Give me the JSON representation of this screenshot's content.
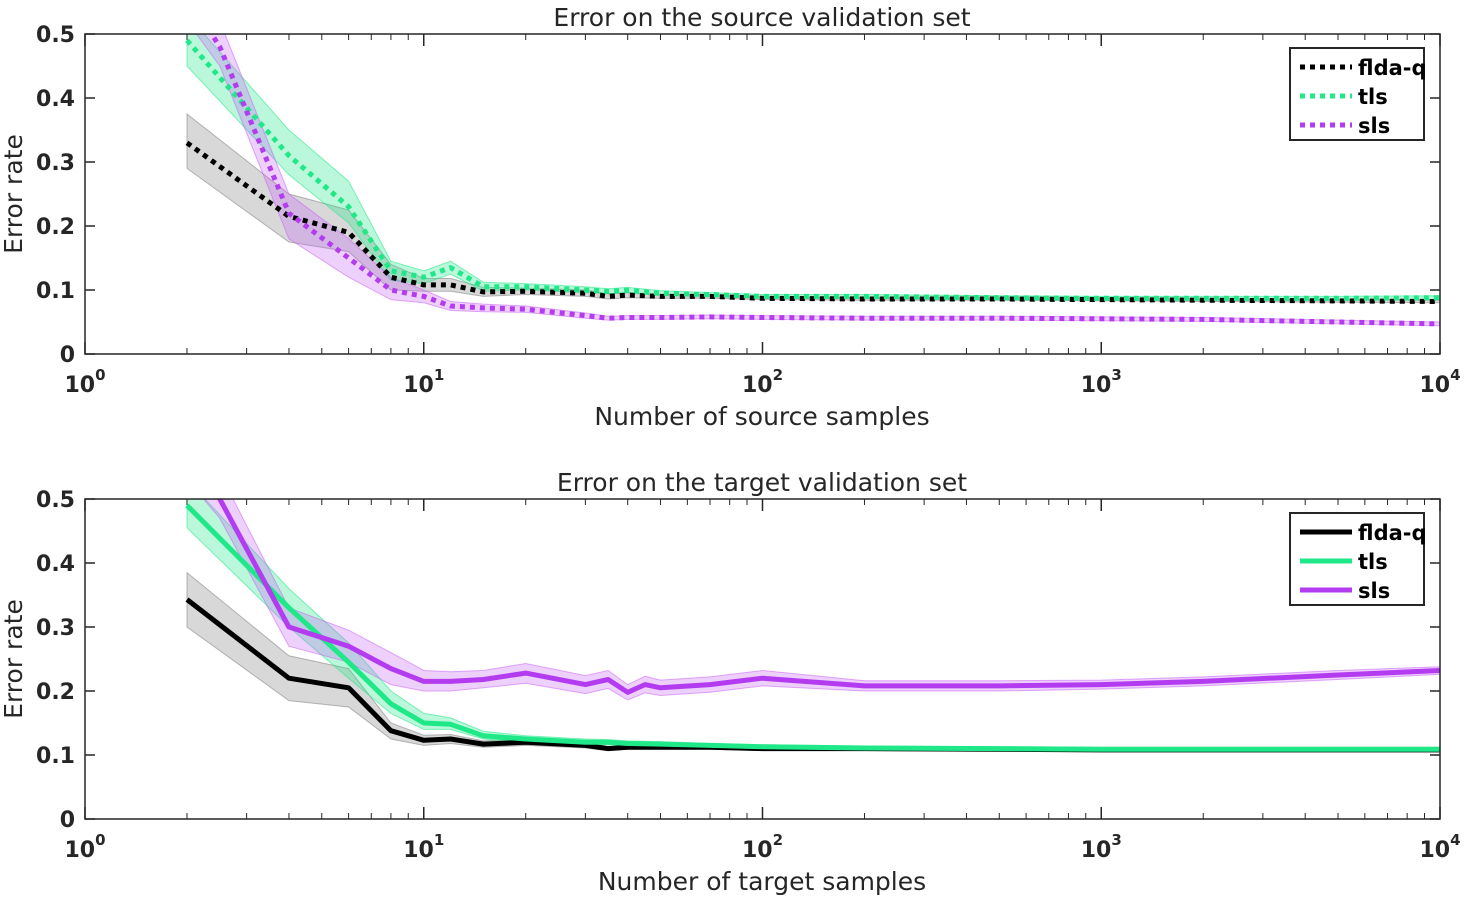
{
  "chart_data": [
    {
      "type": "line",
      "title": "Error on the source validation set",
      "xlabel": "Number of source samples",
      "ylabel": "Error rate",
      "xscale": "log",
      "xlim": [
        1,
        10000
      ],
      "ylim": [
        0,
        0.5
      ],
      "line_style": "dotted",
      "legend_position": "top-right",
      "y_ticks": [
        "0",
        "0.1",
        "0.2",
        "0.3",
        "0.4",
        "0.5"
      ],
      "x_ticks": [
        {
          "base": "10",
          "exp": "0"
        },
        {
          "base": "10",
          "exp": "1"
        },
        {
          "base": "10",
          "exp": "2"
        },
        {
          "base": "10",
          "exp": "3"
        },
        {
          "base": "10",
          "exp": "4"
        }
      ],
      "series": [
        {
          "name": "flda-q",
          "color": "#000000",
          "band_color": "#7f7f7f",
          "x": [
            2,
            4,
            6,
            8,
            10,
            12,
            15,
            20,
            30,
            35,
            40,
            50,
            70,
            100,
            200,
            500,
            1000,
            2000,
            5000,
            10000
          ],
          "y": [
            0.33,
            0.215,
            0.19,
            0.12,
            0.108,
            0.108,
            0.097,
            0.098,
            0.095,
            0.09,
            0.092,
            0.09,
            0.09,
            0.087,
            0.086,
            0.086,
            0.085,
            0.084,
            0.083,
            0.082
          ],
          "lower": [
            0.29,
            0.175,
            0.16,
            0.1,
            0.098,
            0.098,
            0.09,
            0.093,
            0.09,
            0.086,
            0.088,
            0.087,
            0.087,
            0.085,
            0.084,
            0.084,
            0.083,
            0.082,
            0.081,
            0.08
          ],
          "upper": [
            0.375,
            0.25,
            0.225,
            0.14,
            0.118,
            0.118,
            0.104,
            0.103,
            0.1,
            0.094,
            0.096,
            0.093,
            0.093,
            0.089,
            0.088,
            0.088,
            0.087,
            0.086,
            0.085,
            0.084
          ]
        },
        {
          "name": "tls",
          "color": "#1ee887",
          "band_color": "#1ee887",
          "x": [
            2,
            4,
            6,
            8,
            10,
            12,
            15,
            20,
            30,
            35,
            40,
            50,
            70,
            100,
            200,
            500,
            1000,
            2000,
            5000,
            10000
          ],
          "y": [
            0.49,
            0.31,
            0.23,
            0.13,
            0.12,
            0.135,
            0.105,
            0.105,
            0.1,
            0.098,
            0.1,
            0.095,
            0.093,
            0.09,
            0.09,
            0.088,
            0.087,
            0.087,
            0.087,
            0.088
          ],
          "lower": [
            0.45,
            0.28,
            0.205,
            0.115,
            0.11,
            0.125,
            0.098,
            0.1,
            0.096,
            0.094,
            0.096,
            0.091,
            0.09,
            0.087,
            0.087,
            0.085,
            0.084,
            0.084,
            0.084,
            0.085
          ],
          "upper": [
            0.53,
            0.35,
            0.27,
            0.145,
            0.13,
            0.145,
            0.112,
            0.11,
            0.105,
            0.102,
            0.104,
            0.099,
            0.096,
            0.093,
            0.093,
            0.091,
            0.09,
            0.09,
            0.09,
            0.091
          ]
        },
        {
          "name": "sls",
          "color": "#b43cf0",
          "band_color": "#c864f5",
          "x": [
            2,
            2.5,
            4,
            6,
            8,
            10,
            12,
            15,
            20,
            30,
            35,
            40,
            50,
            70,
            100,
            200,
            500,
            1000,
            2000,
            5000,
            10000
          ],
          "y": [
            0.56,
            0.48,
            0.22,
            0.15,
            0.1,
            0.09,
            0.075,
            0.072,
            0.07,
            0.06,
            0.056,
            0.057,
            0.057,
            0.058,
            0.057,
            0.056,
            0.056,
            0.055,
            0.054,
            0.05,
            0.047
          ],
          "lower": [
            0.52,
            0.45,
            0.18,
            0.12,
            0.085,
            0.08,
            0.068,
            0.066,
            0.065,
            0.056,
            0.053,
            0.054,
            0.054,
            0.055,
            0.054,
            0.053,
            0.053,
            0.052,
            0.051,
            0.047,
            0.044
          ],
          "upper": [
            0.6,
            0.52,
            0.25,
            0.18,
            0.12,
            0.1,
            0.082,
            0.078,
            0.075,
            0.064,
            0.059,
            0.06,
            0.06,
            0.061,
            0.06,
            0.059,
            0.059,
            0.058,
            0.057,
            0.053,
            0.05
          ]
        }
      ]
    },
    {
      "type": "line",
      "title": "Error on the target validation set",
      "xlabel": "Number of target samples",
      "ylabel": "Error rate",
      "xscale": "log",
      "xlim": [
        1,
        10000
      ],
      "ylim": [
        0,
        0.5
      ],
      "line_style": "solid",
      "legend_position": "top-right",
      "y_ticks": [
        "0",
        "0.1",
        "0.2",
        "0.3",
        "0.4",
        "0.5"
      ],
      "x_ticks": [
        {
          "base": "10",
          "exp": "0"
        },
        {
          "base": "10",
          "exp": "1"
        },
        {
          "base": "10",
          "exp": "2"
        },
        {
          "base": "10",
          "exp": "3"
        },
        {
          "base": "10",
          "exp": "4"
        }
      ],
      "series": [
        {
          "name": "flda-q",
          "color": "#000000",
          "band_color": "#7f7f7f",
          "x": [
            2,
            4,
            6,
            8,
            10,
            12,
            15,
            20,
            30,
            35,
            40,
            50,
            70,
            100,
            200,
            500,
            1000,
            2000,
            5000,
            10000
          ],
          "y": [
            0.343,
            0.22,
            0.205,
            0.138,
            0.123,
            0.125,
            0.117,
            0.12,
            0.115,
            0.11,
            0.112,
            0.112,
            0.112,
            0.11,
            0.11,
            0.109,
            0.108,
            0.108,
            0.108,
            0.108
          ],
          "lower": [
            0.3,
            0.185,
            0.175,
            0.125,
            0.115,
            0.118,
            0.112,
            0.115,
            0.111,
            0.107,
            0.109,
            0.109,
            0.109,
            0.107,
            0.107,
            0.106,
            0.105,
            0.105,
            0.105,
            0.105
          ],
          "upper": [
            0.385,
            0.255,
            0.235,
            0.15,
            0.131,
            0.132,
            0.122,
            0.125,
            0.119,
            0.113,
            0.115,
            0.115,
            0.115,
            0.113,
            0.113,
            0.112,
            0.111,
            0.111,
            0.111,
            0.111
          ]
        },
        {
          "name": "tls",
          "color": "#1ee887",
          "band_color": "#1ee887",
          "x": [
            2,
            4,
            6,
            8,
            10,
            12,
            15,
            20,
            30,
            35,
            40,
            50,
            70,
            100,
            200,
            500,
            1000,
            2000,
            5000,
            10000
          ],
          "y": [
            0.49,
            0.33,
            0.245,
            0.18,
            0.15,
            0.148,
            0.13,
            0.125,
            0.12,
            0.12,
            0.118,
            0.117,
            0.115,
            0.113,
            0.111,
            0.11,
            0.109,
            0.109,
            0.109,
            0.109
          ],
          "lower": [
            0.455,
            0.3,
            0.22,
            0.165,
            0.14,
            0.14,
            0.125,
            0.12,
            0.116,
            0.116,
            0.114,
            0.113,
            0.112,
            0.11,
            0.108,
            0.107,
            0.106,
            0.106,
            0.106,
            0.106
          ],
          "upper": [
            0.53,
            0.36,
            0.275,
            0.2,
            0.165,
            0.158,
            0.137,
            0.13,
            0.125,
            0.124,
            0.122,
            0.121,
            0.118,
            0.116,
            0.114,
            0.113,
            0.112,
            0.112,
            0.112,
            0.112
          ]
        },
        {
          "name": "sls",
          "color": "#b43cf0",
          "band_color": "#c864f5",
          "x": [
            2,
            2.5,
            4,
            6,
            8,
            10,
            12,
            15,
            20,
            30,
            35,
            40,
            45,
            50,
            70,
            100,
            200,
            500,
            1000,
            2000,
            5000,
            10000
          ],
          "y": [
            0.57,
            0.5,
            0.3,
            0.27,
            0.235,
            0.215,
            0.215,
            0.218,
            0.228,
            0.21,
            0.218,
            0.198,
            0.21,
            0.205,
            0.21,
            0.22,
            0.208,
            0.208,
            0.21,
            0.215,
            0.225,
            0.232
          ],
          "lower": [
            0.53,
            0.47,
            0.27,
            0.245,
            0.21,
            0.2,
            0.2,
            0.205,
            0.212,
            0.196,
            0.204,
            0.186,
            0.197,
            0.193,
            0.198,
            0.208,
            0.2,
            0.2,
            0.203,
            0.208,
            0.218,
            0.226
          ],
          "upper": [
            0.61,
            0.54,
            0.33,
            0.295,
            0.26,
            0.232,
            0.23,
            0.232,
            0.243,
            0.224,
            0.232,
            0.21,
            0.223,
            0.217,
            0.222,
            0.232,
            0.216,
            0.216,
            0.217,
            0.222,
            0.232,
            0.238
          ]
        }
      ]
    }
  ]
}
